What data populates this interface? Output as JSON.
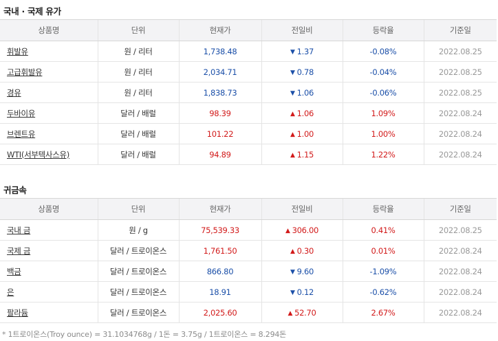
{
  "oil": {
    "title": "국내 · 국제 유가",
    "headers": [
      "상품명",
      "단위",
      "현재가",
      "전일비",
      "등락율",
      "기준일"
    ],
    "rows": [
      {
        "name": "휘발유",
        "unit": "원 / 리터",
        "price": "1,738.48",
        "change": "1.37",
        "rate": "-0.08%",
        "date": "2022.08.25",
        "dir": "down"
      },
      {
        "name": "고급휘발유",
        "unit": "원 / 리터",
        "price": "2,034.71",
        "change": "0.78",
        "rate": "-0.04%",
        "date": "2022.08.25",
        "dir": "down"
      },
      {
        "name": "경유",
        "unit": "원 / 리터",
        "price": "1,838.73",
        "change": "1.06",
        "rate": "-0.06%",
        "date": "2022.08.25",
        "dir": "down"
      },
      {
        "name": "두바이유",
        "unit": "달러 / 배럴",
        "price": "98.39",
        "change": "1.06",
        "rate": "1.09%",
        "date": "2022.08.24",
        "dir": "up"
      },
      {
        "name": "브렌트유",
        "unit": "달러 / 배럴",
        "price": "101.22",
        "change": "1.00",
        "rate": "1.00%",
        "date": "2022.08.24",
        "dir": "up"
      },
      {
        "name": "WTI(서부텍사스유)",
        "unit": "달러 / 배럴",
        "price": "94.89",
        "change": "1.15",
        "rate": "1.22%",
        "date": "2022.08.24",
        "dir": "up"
      }
    ]
  },
  "metals": {
    "title": "귀금속",
    "headers": [
      "상품명",
      "단위",
      "현재가",
      "전일비",
      "등락율",
      "기준일"
    ],
    "rows": [
      {
        "name": "국내 금",
        "unit": "원 / g",
        "price": "75,539.33",
        "change": "306.00",
        "rate": "0.41%",
        "date": "2022.08.25",
        "dir": "up"
      },
      {
        "name": "국제 금",
        "unit": "달러 / 트로이온스",
        "price": "1,761.50",
        "change": "0.30",
        "rate": "0.01%",
        "date": "2022.08.24",
        "dir": "up"
      },
      {
        "name": "백금",
        "unit": "달러 / 트로이온스",
        "price": "866.80",
        "change": "9.60",
        "rate": "-1.09%",
        "date": "2022.08.24",
        "dir": "down"
      },
      {
        "name": "은",
        "unit": "달러 / 트로이온스",
        "price": "18.91",
        "change": "0.12",
        "rate": "-0.62%",
        "date": "2022.08.24",
        "dir": "down"
      },
      {
        "name": "팔라듐",
        "unit": "달러 / 트로이온스",
        "price": "2,025.60",
        "change": "52.70",
        "rate": "2.67%",
        "date": "2022.08.24",
        "dir": "up"
      }
    ]
  },
  "footnote": "* 1트로이온스(Troy ounce) = 31.1034768g / 1돈 = 3.75g / 1트로이온스 = 8.294돈",
  "colors": {
    "up": "#d21a1a",
    "down": "#1b4fa8"
  },
  "icons": {
    "up": "up-triangle-icon",
    "down": "down-triangle-icon"
  }
}
